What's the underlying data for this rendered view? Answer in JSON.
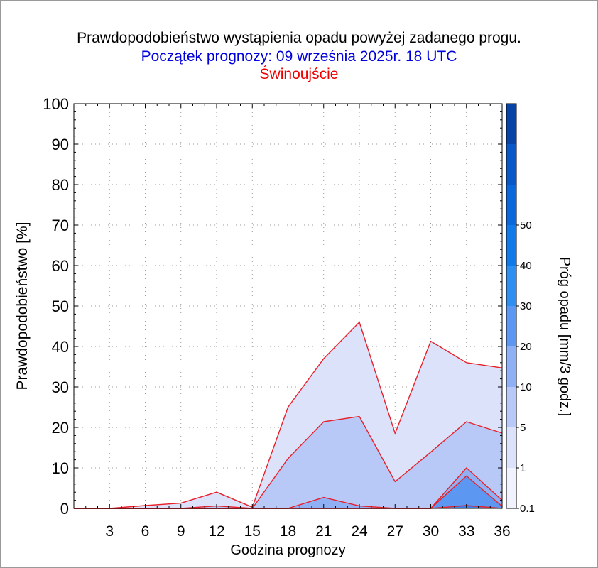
{
  "chart_data": {
    "type": "area",
    "title": "Prawdopodobieństwo wystąpienia opadu powyżej zadanego progu.",
    "subtitle": "Początek prognozy: 09 września 2025r. 18 UTC",
    "location": "Świnoujście",
    "xlabel": "Godzina prognozy",
    "ylabel": "Prawdopodobieństwo [%]",
    "colorbar_label": "Próg opadu [mm/3 godz.]",
    "xlim": [
      0,
      36
    ],
    "ylim": [
      0,
      100
    ],
    "x_ticks": [
      3,
      6,
      9,
      12,
      15,
      18,
      21,
      24,
      27,
      30,
      33,
      36
    ],
    "y_ticks": [
      0,
      10,
      20,
      30,
      40,
      50,
      60,
      70,
      80,
      90,
      100
    ],
    "grid": true,
    "x": [
      0,
      3,
      6,
      9,
      12,
      15,
      18,
      21,
      24,
      27,
      30,
      33,
      36
    ],
    "series": [
      {
        "name": "0.1",
        "color": "#dde2fb",
        "values": [
          0,
          0,
          0.7,
          1.3,
          4.0,
          0.3,
          25.0,
          37.0,
          46.0,
          18.5,
          41.3,
          36.0,
          34.7
        ]
      },
      {
        "name": "1",
        "color": "#b8c9f7",
        "values": [
          0,
          0,
          0,
          0,
          0.6,
          0,
          12.3,
          21.4,
          22.7,
          6.6,
          13.9,
          21.4,
          18.6
        ]
      },
      {
        "name": "5",
        "color": "#8fb0f5",
        "values": [
          0,
          0,
          0,
          0,
          0,
          0,
          0,
          2.7,
          0.6,
          0,
          0,
          10.0,
          2.0
        ]
      },
      {
        "name": "10",
        "color": "#5c98f2",
        "values": [
          0,
          0,
          0,
          0,
          0,
          0,
          0,
          0,
          0,
          0,
          0,
          8.0,
          0.5
        ]
      },
      {
        "name": "20",
        "color": "#3c7fe8",
        "values": [
          0,
          0,
          0,
          0,
          0,
          0,
          0,
          0,
          0,
          0,
          0,
          0.7,
          0
        ]
      }
    ],
    "colorbar": {
      "labels": [
        "0.1",
        "1",
        "5",
        "10",
        "20",
        "30",
        "40",
        "50"
      ],
      "colors": [
        "#f0f2fd",
        "#dde2fb",
        "#b8c9f7",
        "#8fb0f5",
        "#5c98f2",
        "#2e8ff0",
        "#0f7ae8",
        "#0b68dc",
        "#0a57c8",
        "#0844a8"
      ]
    }
  }
}
